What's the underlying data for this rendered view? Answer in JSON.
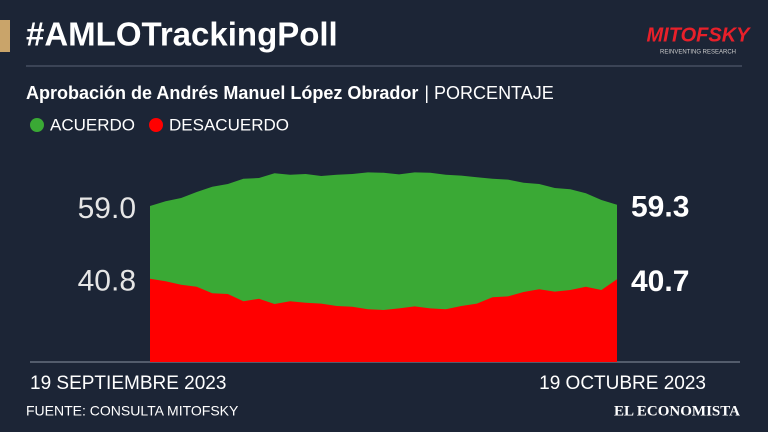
{
  "chart_data": {
    "type": "area",
    "title": "#AMLOTrackingPoll",
    "subtitle": "Aprobación de Andrés Manuel López Obrador",
    "subtitle_unit": "| PORCENTAJE",
    "logo": "MITOFSKY",
    "logo_tagline": "REINVENTING RESEARCH",
    "source": "FUENTE: CONSULTA MITOFSKY",
    "brand": "EL ECONOMISTA",
    "categories": [
      "19 SEPTIEMBRE 2023",
      null,
      null,
      null,
      null,
      null,
      null,
      null,
      null,
      null,
      null,
      null,
      null,
      null,
      null,
      null,
      null,
      null,
      null,
      null,
      null,
      null,
      null,
      null,
      null,
      null,
      null,
      null,
      null,
      null,
      "19 OCTUBRE 2023"
    ],
    "series": [
      {
        "name": "ACUERDO",
        "color": "#3aa935",
        "values": [
          59.0,
          60.2,
          61.0,
          62.5,
          63.8,
          64.5,
          65.8,
          66.0,
          67.2,
          66.8,
          67.0,
          66.5,
          66.8,
          67.0,
          67.4,
          67.3,
          66.9,
          67.4,
          67.3,
          66.8,
          66.6,
          66.2,
          65.8,
          65.6,
          64.8,
          64.5,
          63.5,
          63.2,
          62.2,
          60.5,
          59.3
        ],
        "value_labels": [
          "59.0",
          null,
          null,
          null,
          null,
          null,
          null,
          null,
          null,
          null,
          null,
          null,
          null,
          null,
          null,
          null,
          null,
          null,
          null,
          null,
          null,
          null,
          null,
          null,
          null,
          null,
          null,
          null,
          null,
          null,
          "59.3"
        ]
      },
      {
        "name": "DESACUERDO",
        "color": "#ff0000",
        "values": [
          40.8,
          40.2,
          39.3,
          38.8,
          37.2,
          37.0,
          35.2,
          35.8,
          34.5,
          35.2,
          34.8,
          34.6,
          34.0,
          33.8,
          33.2,
          33.0,
          33.4,
          33.9,
          33.4,
          33.2,
          34.0,
          34.6,
          36.2,
          36.4,
          37.5,
          38.2,
          37.6,
          38.0,
          38.8,
          38.0,
          40.7
        ],
        "value_labels": [
          "40.8",
          null,
          null,
          null,
          null,
          null,
          null,
          null,
          null,
          null,
          null,
          null,
          null,
          null,
          null,
          null,
          null,
          null,
          null,
          null,
          null,
          null,
          null,
          null,
          null,
          null,
          null,
          null,
          null,
          null,
          "40.7"
        ]
      }
    ],
    "ylim": [
      20,
      70
    ]
  }
}
